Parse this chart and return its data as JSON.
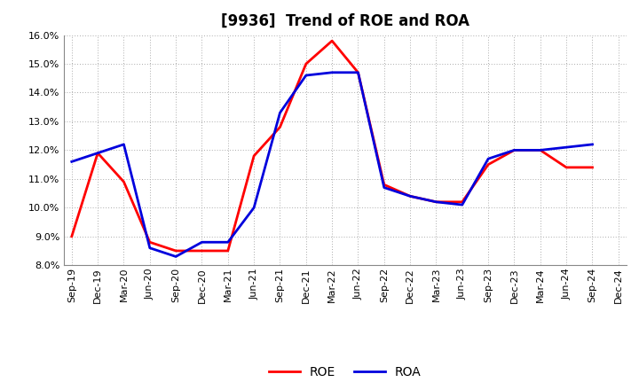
{
  "title": "[9936]  Trend of ROE and ROA",
  "ylim": [
    0.08,
    0.16
  ],
  "yticks": [
    0.08,
    0.09,
    0.1,
    0.11,
    0.12,
    0.13,
    0.14,
    0.15,
    0.16
  ],
  "x_labels": [
    "Sep-19",
    "Dec-19",
    "Mar-20",
    "Jun-20",
    "Sep-20",
    "Dec-20",
    "Mar-21",
    "Jun-21",
    "Sep-21",
    "Dec-21",
    "Mar-22",
    "Jun-22",
    "Sep-22",
    "Dec-22",
    "Mar-23",
    "Jun-23",
    "Sep-23",
    "Dec-23",
    "Mar-24",
    "Jun-24",
    "Sep-24",
    "Dec-24"
  ],
  "roe": [
    0.09,
    0.119,
    0.109,
    0.088,
    0.085,
    0.085,
    0.085,
    0.118,
    0.128,
    0.15,
    0.158,
    0.147,
    0.108,
    0.104,
    0.102,
    0.102,
    0.115,
    0.12,
    0.12,
    0.114,
    0.114,
    null
  ],
  "roa": [
    0.116,
    0.119,
    0.122,
    0.086,
    0.083,
    0.088,
    0.088,
    0.1,
    0.133,
    0.146,
    0.147,
    0.147,
    0.107,
    0.104,
    0.102,
    0.101,
    0.117,
    0.12,
    0.12,
    0.121,
    0.122,
    null
  ],
  "roe_color": "#ff0000",
  "roa_color": "#0000dd",
  "line_width": 2.0,
  "background_color": "#ffffff",
  "grid_color": "#aaaaaa",
  "title_fontsize": 12,
  "tick_fontsize": 8,
  "legend_fontsize": 10
}
